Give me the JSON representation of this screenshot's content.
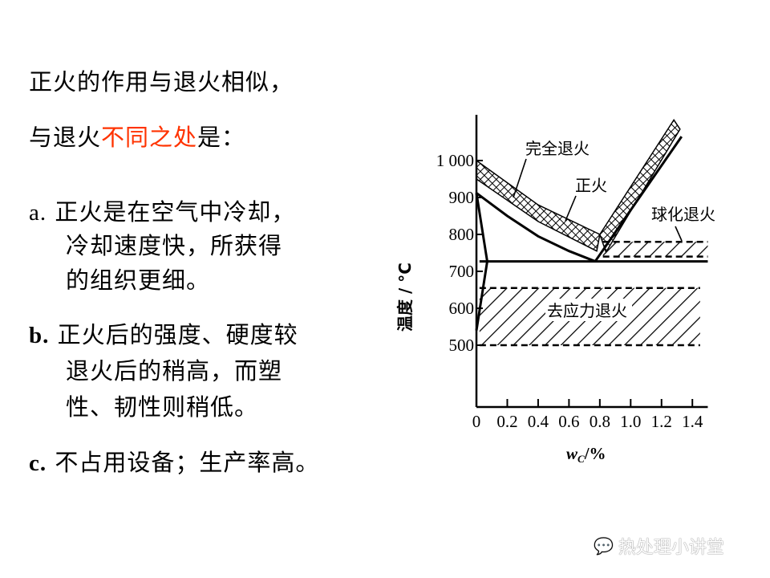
{
  "slide": {
    "line1": "正火的作用与退火相似，",
    "line2_pre": "与退火",
    "line2_red": "不同之处",
    "line2_post": "是：",
    "accent_color": "#ff3300",
    "items": [
      {
        "marker": "a.",
        "lines": [
          "正火是在空气中冷却，",
          "冷却速度快，所获得",
          "的组织更细。"
        ]
      },
      {
        "marker": "b.",
        "lines": [
          "正火后的强度、硬度较",
          "退火后的稍高，而塑",
          "性、韧性则稍低。"
        ]
      },
      {
        "marker": "c.",
        "lines": [
          "不占用设备；生产率高。"
        ]
      }
    ]
  },
  "watermark": {
    "icon": "wechat-icon",
    "text": "热处理小讲堂"
  },
  "chart_data": {
    "type": "line",
    "ylabel": "温度 / °C",
    "xlabel_main": "w",
    "xlabel_sub": "C",
    "xlabel_unit": "/%",
    "x_ticks": [
      "0",
      "0.2",
      "0.4",
      "0.6",
      "0.8",
      "1.0",
      "1.2",
      "1.4"
    ],
    "x_tick_values": [
      0,
      0.2,
      0.4,
      0.6,
      0.8,
      1.0,
      1.2,
      1.4
    ],
    "y_ticks": [
      "1 000",
      "900",
      "800",
      "700",
      "600",
      "500"
    ],
    "y_tick_values": [
      1000,
      900,
      800,
      700,
      600,
      500
    ],
    "xlim": [
      0,
      1.55
    ],
    "ylim": [
      333,
      1125
    ],
    "lines": {
      "A3": [
        [
          0,
          912
        ],
        [
          0.2,
          850
        ],
        [
          0.4,
          795
        ],
        [
          0.6,
          755
        ],
        [
          0.77,
          727
        ]
      ],
      "Acm": [
        [
          0.77,
          727
        ],
        [
          1.33,
          1065
        ]
      ],
      "A1": [
        [
          0.02,
          727
        ],
        [
          1.5,
          727
        ]
      ],
      "ferrite_left": [
        [
          0,
          912
        ],
        [
          0.07,
          727
        ],
        [
          0.03,
          620
        ],
        [
          0,
          540
        ]
      ]
    },
    "regions": [
      {
        "label": "完全退火",
        "pattern": "crosshatch",
        "upper": [
          [
            0,
            1000
          ],
          [
            0.4,
            880
          ],
          [
            0.8,
            800
          ]
        ],
        "lower": [
          [
            0,
            950
          ],
          [
            0.4,
            835
          ],
          [
            0.78,
            755
          ]
        ]
      },
      {
        "label": "正火",
        "pattern": "crosshatch",
        "upper": [
          [
            0.8,
            800
          ],
          [
            1.28,
            1110
          ]
        ],
        "lower": [
          [
            0.84,
            752
          ],
          [
            1.32,
            1085
          ]
        ]
      },
      {
        "label": "球化退火",
        "pattern": "hatch",
        "x": [
          0.82,
          1.5
        ],
        "t": [
          740,
          780
        ]
      },
      {
        "label": "去应力退火",
        "pattern": "hatch",
        "x": [
          0.02,
          1.45
        ],
        "t": [
          500,
          655
        ]
      }
    ]
  }
}
